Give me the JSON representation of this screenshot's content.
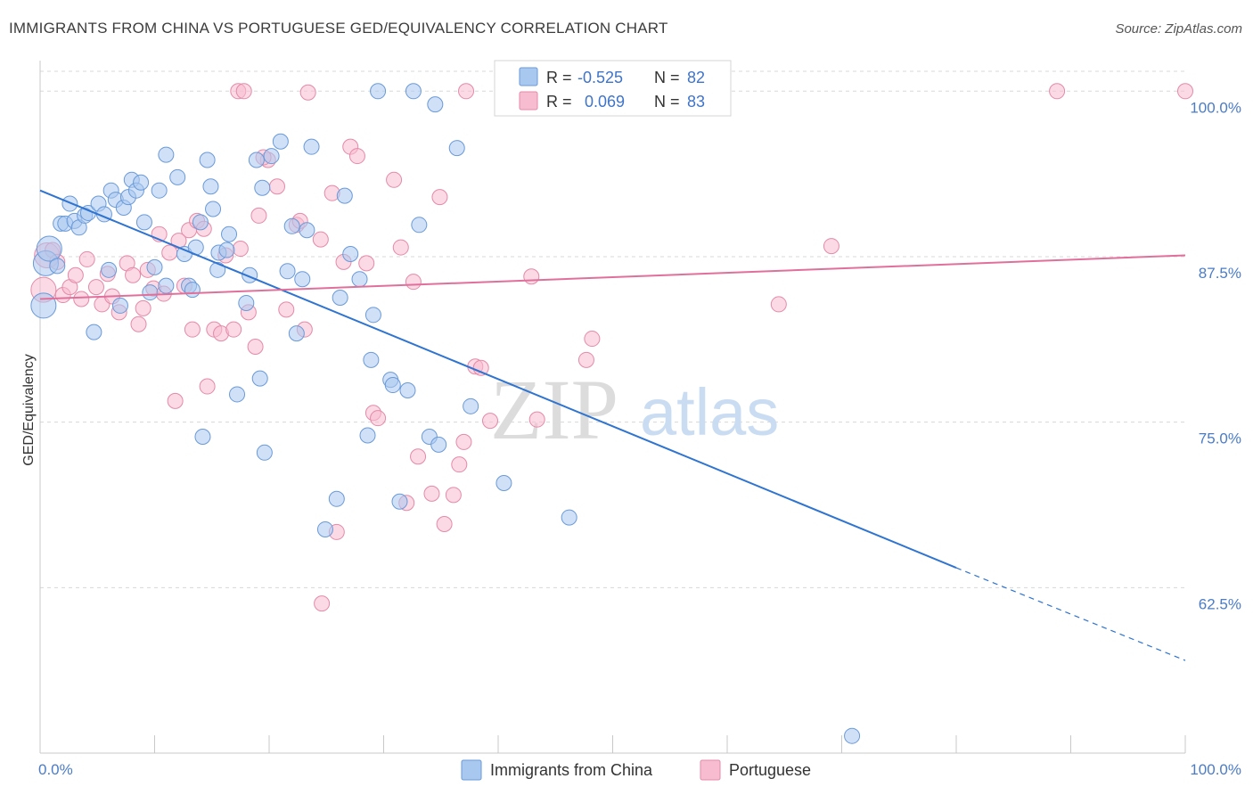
{
  "title": "IMMIGRANTS FROM CHINA VS PORTUGUESE GED/EQUIVALENCY CORRELATION CHART",
  "source": "Source: ZipAtlas.com",
  "watermark": {
    "zip": "ZIP",
    "atlas": "atlas"
  },
  "colors": {
    "blue_fill": "#a9c8f0",
    "blue_stroke": "#6a9ad8",
    "blue_line": "#2f74d0",
    "pink_fill": "#f7bcd0",
    "pink_stroke": "#e48aa8",
    "pink_line": "#e0709a",
    "axis_text": "#4a7cc7",
    "grid": "#d8d8d8"
  },
  "legend": {
    "rows": [
      {
        "r_label": "R =",
        "r_value": "-0.525",
        "n_label": "N =",
        "n_value": "82"
      },
      {
        "r_label": "R =",
        "r_value": "0.069",
        "n_label": "N =",
        "n_value": "83"
      }
    ]
  },
  "chart_data": {
    "type": "scatter",
    "title": "IMMIGRANTS FROM CHINA VS PORTUGUESE GED/EQUIVALENCY CORRELATION CHART",
    "xlabel": "",
    "ylabel": "GED/Equivalency",
    "xlim": [
      0,
      100
    ],
    "ylim": [
      50,
      101.5
    ],
    "x_tick_labels": [
      "0.0%",
      "100.0%"
    ],
    "y_ticks": [
      62.5,
      75.0,
      87.5,
      100.0
    ],
    "y_tick_labels": [
      "62.5%",
      "75.0%",
      "87.5%",
      "100.0%"
    ],
    "grid": "horizontal dashed",
    "legend_placement": "top-center",
    "series": [
      {
        "name": "Immigrants from China",
        "color": "#a9c8f0",
        "trend": {
          "x": [
            0,
            80
          ],
          "y": [
            92.5,
            64.0
          ],
          "dashed_extension_to": [
            100,
            57.0
          ]
        },
        "points": [
          [
            0.3,
            83.8
          ],
          [
            0.5,
            87.0
          ],
          [
            0.8,
            88.1
          ],
          [
            1.5,
            86.8
          ],
          [
            1.8,
            90.0
          ],
          [
            2.2,
            90.0
          ],
          [
            2.6,
            91.5
          ],
          [
            3,
            90.2
          ],
          [
            3.4,
            89.7
          ],
          [
            3.9,
            90.6
          ],
          [
            4.2,
            90.8
          ],
          [
            4.7,
            81.8
          ],
          [
            5.1,
            91.5
          ],
          [
            5.6,
            90.7
          ],
          [
            6.0,
            86.5
          ],
          [
            6.2,
            92.5
          ],
          [
            6.6,
            91.8
          ],
          [
            7.0,
            83.8
          ],
          [
            7.3,
            91.2
          ],
          [
            7.7,
            92.0
          ],
          [
            8.0,
            93.3
          ],
          [
            8.4,
            92.5
          ],
          [
            8.8,
            93.1
          ],
          [
            9.1,
            90.1
          ],
          [
            9.6,
            84.8
          ],
          [
            10.0,
            86.7
          ],
          [
            10.4,
            92.5
          ],
          [
            11.0,
            85.3
          ],
          [
            11.0,
            95.2
          ],
          [
            12.0,
            93.5
          ],
          [
            12.6,
            87.7
          ],
          [
            13.0,
            85.3
          ],
          [
            13.3,
            85.0
          ],
          [
            13.6,
            88.2
          ],
          [
            14.0,
            90.1
          ],
          [
            14.2,
            73.9
          ],
          [
            14.6,
            94.8
          ],
          [
            14.9,
            92.8
          ],
          [
            15.1,
            91.1
          ],
          [
            15.5,
            86.5
          ],
          [
            15.6,
            87.8
          ],
          [
            16.3,
            88.0
          ],
          [
            16.5,
            89.2
          ],
          [
            17.2,
            77.1
          ],
          [
            18.0,
            84.0
          ],
          [
            18.3,
            86.1
          ],
          [
            18.9,
            94.8
          ],
          [
            19.2,
            78.3
          ],
          [
            19.4,
            92.7
          ],
          [
            19.6,
            72.7
          ],
          [
            20.2,
            95.1
          ],
          [
            21.0,
            96.2
          ],
          [
            21.6,
            86.4
          ],
          [
            22.0,
            89.8
          ],
          [
            22.4,
            81.7
          ],
          [
            22.9,
            85.8
          ],
          [
            23.3,
            89.5
          ],
          [
            23.7,
            95.8
          ],
          [
            24.9,
            66.9
          ],
          [
            25.9,
            69.2
          ],
          [
            26.2,
            84.4
          ],
          [
            26.6,
            92.1
          ],
          [
            27.1,
            87.7
          ],
          [
            27.9,
            85.8
          ],
          [
            28.6,
            74.0
          ],
          [
            28.9,
            79.7
          ],
          [
            29.1,
            83.1
          ],
          [
            29.5,
            100.0
          ],
          [
            30.6,
            78.2
          ],
          [
            30.8,
            77.8
          ],
          [
            31.4,
            69.0
          ],
          [
            32.1,
            77.4
          ],
          [
            32.6,
            100.0
          ],
          [
            33.1,
            89.9
          ],
          [
            34.0,
            73.9
          ],
          [
            34.5,
            99.0
          ],
          [
            34.8,
            73.3
          ],
          [
            36.4,
            95.7
          ],
          [
            37.6,
            76.2
          ],
          [
            40.5,
            70.4
          ],
          [
            46.2,
            67.8
          ],
          [
            70.9,
            51.3
          ]
        ]
      },
      {
        "name": "Portuguese",
        "color": "#f7bcd0",
        "trend": {
          "x": [
            0,
            100
          ],
          "y": [
            84.3,
            87.6
          ]
        },
        "points": [
          [
            0.3,
            85.0
          ],
          [
            0.6,
            87.6
          ],
          [
            1.1,
            88.0
          ],
          [
            1.5,
            87.1
          ],
          [
            2.0,
            84.6
          ],
          [
            2.6,
            85.2
          ],
          [
            3.1,
            86.1
          ],
          [
            3.6,
            84.3
          ],
          [
            4.1,
            87.3
          ],
          [
            4.9,
            85.2
          ],
          [
            5.4,
            83.9
          ],
          [
            5.9,
            86.2
          ],
          [
            6.3,
            84.5
          ],
          [
            6.9,
            83.3
          ],
          [
            7.6,
            87.0
          ],
          [
            8.1,
            86.1
          ],
          [
            8.6,
            82.4
          ],
          [
            9.0,
            83.6
          ],
          [
            9.4,
            86.5
          ],
          [
            9.9,
            85.1
          ],
          [
            10.4,
            89.2
          ],
          [
            10.8,
            84.7
          ],
          [
            11.3,
            87.8
          ],
          [
            11.8,
            76.6
          ],
          [
            12.6,
            85.3
          ],
          [
            13.0,
            89.5
          ],
          [
            13.3,
            82.0
          ],
          [
            13.7,
            90.2
          ],
          [
            14.3,
            89.6
          ],
          [
            14.6,
            77.7
          ],
          [
            15.2,
            82.0
          ],
          [
            15.8,
            81.7
          ],
          [
            16.2,
            87.6
          ],
          [
            16.9,
            82.0
          ],
          [
            17.5,
            88.1
          ],
          [
            18.2,
            83.3
          ],
          [
            18.8,
            80.7
          ],
          [
            19.1,
            90.6
          ],
          [
            19.9,
            94.8
          ],
          [
            20.7,
            92.8
          ],
          [
            21.5,
            83.5
          ],
          [
            22.4,
            89.9
          ],
          [
            22.7,
            90.2
          ],
          [
            23.1,
            82.0
          ],
          [
            23.4,
            99.9
          ],
          [
            24.5,
            88.8
          ],
          [
            25.5,
            92.3
          ],
          [
            25.9,
            66.7
          ],
          [
            26.5,
            87.1
          ],
          [
            27.1,
            95.8
          ],
          [
            27.7,
            95.1
          ],
          [
            28.5,
            87.0
          ],
          [
            29.1,
            75.7
          ],
          [
            29.5,
            75.3
          ],
          [
            30.9,
            93.3
          ],
          [
            31.5,
            88.2
          ],
          [
            32.0,
            68.9
          ],
          [
            32.6,
            85.6
          ],
          [
            33.0,
            72.4
          ],
          [
            34.2,
            69.6
          ],
          [
            34.9,
            92.0
          ],
          [
            35.3,
            67.3
          ],
          [
            36.1,
            69.5
          ],
          [
            37.0,
            73.5
          ],
          [
            38.0,
            79.2
          ],
          [
            38.5,
            79.1
          ],
          [
            39.3,
            75.1
          ],
          [
            42.9,
            86.0
          ],
          [
            43.4,
            75.2
          ],
          [
            47.7,
            79.7
          ],
          [
            48.2,
            81.3
          ],
          [
            64.5,
            83.9
          ],
          [
            69.1,
            88.3
          ],
          [
            17.3,
            100.0
          ],
          [
            17.8,
            100.0
          ],
          [
            37.2,
            100.0
          ],
          [
            46.0,
            100.0
          ],
          [
            88.8,
            100.0
          ],
          [
            100.0,
            100.0
          ],
          [
            24.6,
            61.3
          ],
          [
            36.6,
            71.8
          ],
          [
            19.5,
            95.0
          ],
          [
            12.1,
            88.7
          ]
        ]
      }
    ]
  },
  "bottom_legend": [
    {
      "label": "Immigrants from China"
    },
    {
      "label": "Portuguese"
    }
  ]
}
